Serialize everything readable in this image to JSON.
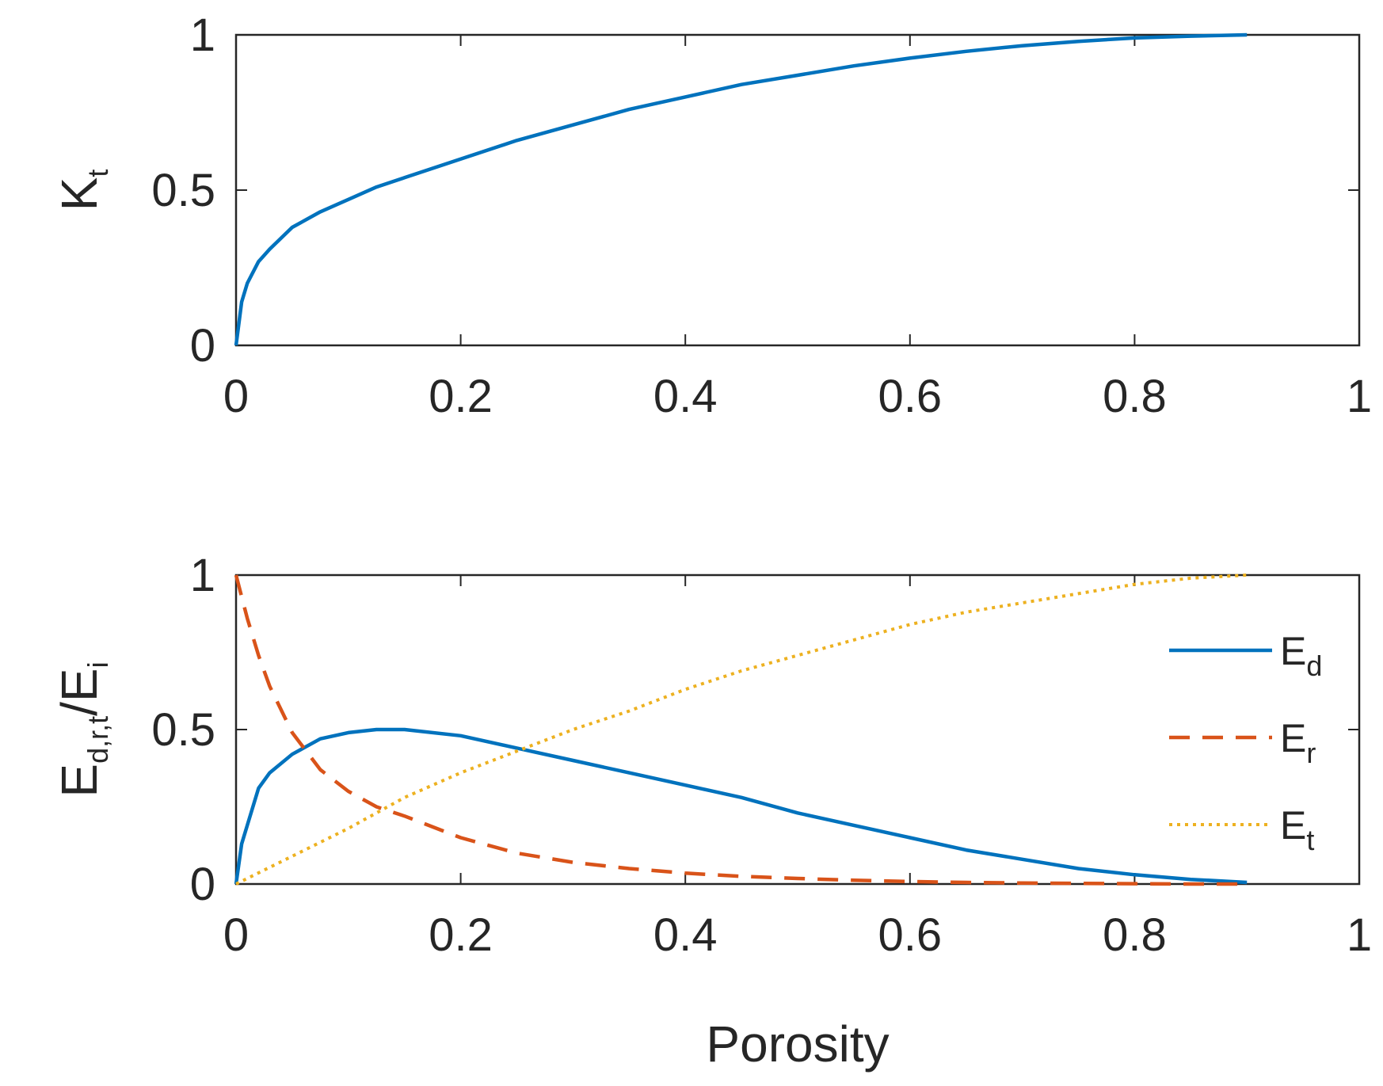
{
  "chart_data": [
    {
      "type": "line",
      "panel": "top",
      "title": "",
      "xlabel": "",
      "ylabel": {
        "base": "K",
        "sub": "t"
      },
      "xlim": [
        0,
        1
      ],
      "ylim": [
        0,
        1
      ],
      "xticks": [
        0,
        0.2,
        0.4,
        0.6,
        0.8,
        1
      ],
      "xtick_labels": [
        "0",
        "0.2",
        "0.4",
        "0.6",
        "0.8",
        "1"
      ],
      "yticks": [
        0,
        0.5,
        1
      ],
      "ytick_labels": [
        "0",
        "0.5",
        "1"
      ],
      "grid": false,
      "series": [
        {
          "name": "Kt",
          "color": "#0072BD",
          "style": "solid",
          "x": [
            0,
            0.005,
            0.01,
            0.02,
            0.03,
            0.05,
            0.075,
            0.1,
            0.125,
            0.15,
            0.2,
            0.25,
            0.3,
            0.35,
            0.4,
            0.45,
            0.5,
            0.55,
            0.6,
            0.65,
            0.7,
            0.75,
            0.8,
            0.85,
            0.9
          ],
          "y": [
            0,
            0.14,
            0.2,
            0.27,
            0.31,
            0.38,
            0.43,
            0.47,
            0.51,
            0.54,
            0.6,
            0.66,
            0.71,
            0.76,
            0.8,
            0.84,
            0.87,
            0.9,
            0.925,
            0.947,
            0.965,
            0.979,
            0.99,
            0.996,
            1.0
          ]
        }
      ]
    },
    {
      "type": "line",
      "panel": "bottom",
      "title": "",
      "xlabel": "Porosity",
      "ylabel": {
        "base": "E",
        "sub": "d,r,t",
        "mid": "/E",
        "sub2": "i"
      },
      "xlim": [
        0,
        1
      ],
      "ylim": [
        0,
        1
      ],
      "xticks": [
        0,
        0.2,
        0.4,
        0.6,
        0.8,
        1
      ],
      "xtick_labels": [
        "0",
        "0.2",
        "0.4",
        "0.6",
        "0.8",
        "1"
      ],
      "yticks": [
        0,
        0.5,
        1
      ],
      "ytick_labels": [
        "0",
        "0.5",
        "1"
      ],
      "grid": false,
      "legend": "right",
      "series": [
        {
          "name": "Ed",
          "legend_base": "E",
          "legend_sub": "d",
          "color": "#0072BD",
          "style": "solid",
          "x": [
            0,
            0.005,
            0.01,
            0.02,
            0.03,
            0.05,
            0.075,
            0.1,
            0.125,
            0.15,
            0.2,
            0.25,
            0.3,
            0.35,
            0.4,
            0.45,
            0.5,
            0.55,
            0.6,
            0.65,
            0.7,
            0.75,
            0.8,
            0.85,
            0.9
          ],
          "y": [
            0,
            0.13,
            0.19,
            0.31,
            0.36,
            0.42,
            0.47,
            0.49,
            0.5,
            0.5,
            0.48,
            0.44,
            0.4,
            0.36,
            0.32,
            0.28,
            0.23,
            0.19,
            0.15,
            0.11,
            0.08,
            0.05,
            0.03,
            0.015,
            0.005
          ]
        },
        {
          "name": "Er",
          "legend_base": "E",
          "legend_sub": "r",
          "color": "#D95319",
          "style": "dashed",
          "x": [
            0,
            0.01,
            0.02,
            0.03,
            0.05,
            0.075,
            0.1,
            0.125,
            0.15,
            0.2,
            0.25,
            0.3,
            0.35,
            0.4,
            0.45,
            0.5,
            0.55,
            0.6,
            0.65,
            0.7,
            0.75,
            0.8,
            0.85,
            0.9
          ],
          "y": [
            1.0,
            0.86,
            0.74,
            0.64,
            0.49,
            0.37,
            0.3,
            0.25,
            0.22,
            0.15,
            0.1,
            0.07,
            0.05,
            0.035,
            0.025,
            0.018,
            0.012,
            0.008,
            0.005,
            0.003,
            0.002,
            0.001,
            0.0,
            0.0
          ]
        },
        {
          "name": "Et",
          "legend_base": "E",
          "legend_sub": "t",
          "color": "#EDB120",
          "style": "dotted",
          "x": [
            0,
            0.05,
            0.1,
            0.15,
            0.2,
            0.25,
            0.3,
            0.35,
            0.4,
            0.45,
            0.5,
            0.55,
            0.6,
            0.65,
            0.7,
            0.75,
            0.8,
            0.85,
            0.9
          ],
          "y": [
            0,
            0.09,
            0.18,
            0.28,
            0.36,
            0.43,
            0.5,
            0.56,
            0.63,
            0.69,
            0.74,
            0.79,
            0.84,
            0.88,
            0.91,
            0.94,
            0.97,
            0.99,
            1.0
          ]
        }
      ]
    }
  ]
}
